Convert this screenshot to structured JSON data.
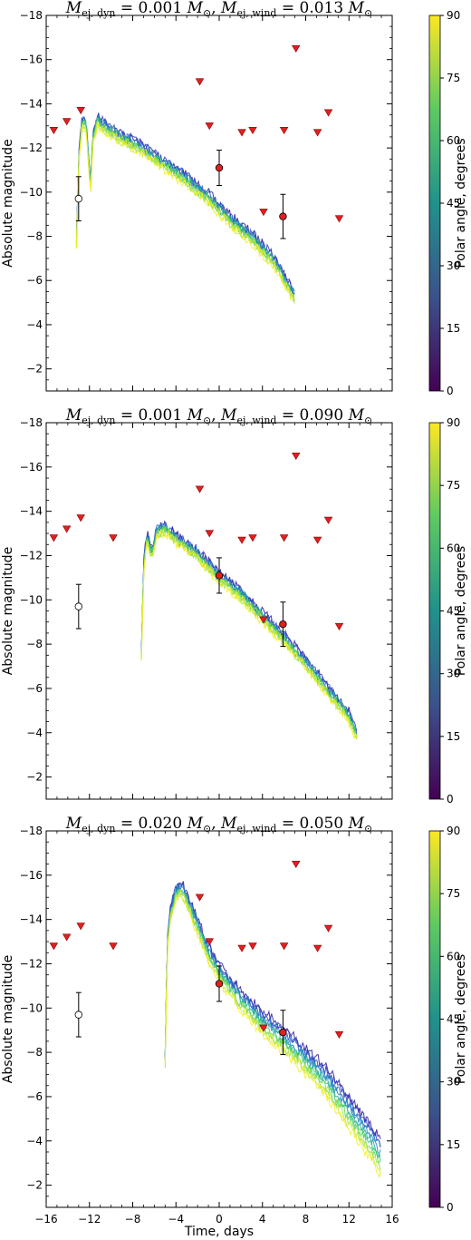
{
  "figure": {
    "xlabel": "Time, days",
    "ylabel": "Absolute magnitude",
    "colorbar_label": "Polar angle, degrees",
    "colorbar_ticks": [
      "0",
      "15",
      "30",
      "45",
      "60",
      "75",
      "90"
    ],
    "colormap": [
      "#440154",
      "#3b528b",
      "#21918c",
      "#5ec962",
      "#fde725"
    ],
    "model_colormap": [
      "#2c1394",
      "#2a4bd0",
      "#1e88c4",
      "#25b38f",
      "#57d95a",
      "#b6e83a",
      "#f4ef22"
    ],
    "marker_color_red": "#e02020",
    "marker_color_open": "#ffffff"
  },
  "chart_data": [
    {
      "type": "line",
      "title": "M_ej,dyn = 0.001 M⊙, M_ej,wind = 0.013 M⊙",
      "xlabel": "",
      "ylabel": "Absolute magnitude",
      "xlim": [
        -16,
        16
      ],
      "ylim": [
        -1,
        -18
      ],
      "xticks": [
        -16,
        -12,
        -8,
        -4,
        0,
        4,
        8,
        12,
        16
      ],
      "yticks": [
        -18,
        -16,
        -14,
        -12,
        -10,
        -8,
        -6,
        -4,
        -2
      ],
      "xticklabels_visible": false,
      "model": {
        "t_start": -13.2,
        "t_end": 7.0,
        "points": [
          [
            -13.2,
            -7.8
          ],
          [
            -13.0,
            -11.5
          ],
          [
            -12.7,
            -13.2
          ],
          [
            -12.3,
            -13.1
          ],
          [
            -11.9,
            -10.2
          ],
          [
            -11.7,
            -12.4
          ],
          [
            -11.3,
            -13.3
          ],
          [
            -10.5,
            -13.0
          ],
          [
            -9.0,
            -12.5
          ],
          [
            -7.0,
            -12.0
          ],
          [
            -5.0,
            -11.3
          ],
          [
            -3.0,
            -10.6
          ],
          [
            -1.0,
            -9.8
          ],
          [
            1.0,
            -8.8
          ],
          [
            3.0,
            -8.0
          ],
          [
            5.0,
            -7.0
          ],
          [
            7.0,
            -5.3
          ]
        ],
        "angle_range": [
          0,
          90
        ],
        "angle_spread_mag": 0.5,
        "early_spread_mag": 0.4
      },
      "upper_limits": [
        [
          -15.3,
          -12.8
        ],
        [
          -14.1,
          -13.2
        ],
        [
          -12.8,
          -13.7
        ],
        [
          -1.8,
          -15.0
        ],
        [
          -0.9,
          -13.0
        ],
        [
          2.1,
          -12.7
        ],
        [
          3.1,
          -12.8
        ],
        [
          4.1,
          -9.1
        ],
        [
          6.0,
          -12.8
        ],
        [
          7.1,
          -16.5
        ],
        [
          9.1,
          -12.7
        ],
        [
          10.1,
          -13.6
        ],
        [
          11.1,
          -8.8
        ]
      ],
      "detections": [
        {
          "x": 0.0,
          "y": -11.1,
          "yerr": 0.8
        },
        {
          "x": 5.9,
          "y": -8.9,
          "yerr": 1.0
        }
      ],
      "open_points": [
        {
          "x": -13.0,
          "y": -9.7,
          "yerr": 1.0
        }
      ]
    },
    {
      "type": "line",
      "title": "M_ej,dyn = 0.001 M⊙, M_ej,wind = 0.090 M⊙",
      "xlabel": "",
      "ylabel": "Absolute magnitude",
      "xlim": [
        -16,
        16
      ],
      "ylim": [
        -1,
        -18
      ],
      "xticks": [
        -16,
        -12,
        -8,
        -4,
        0,
        4,
        8,
        12,
        16
      ],
      "yticks": [
        -18,
        -16,
        -14,
        -12,
        -10,
        -8,
        -6,
        -4,
        -2
      ],
      "xticklabels_visible": false,
      "model": {
        "t_start": -7.2,
        "t_end": 12.8,
        "points": [
          [
            -7.2,
            -7.6
          ],
          [
            -7.0,
            -11.4
          ],
          [
            -6.7,
            -12.9
          ],
          [
            -6.2,
            -12.1
          ],
          [
            -5.8,
            -13.1
          ],
          [
            -5.0,
            -13.3
          ],
          [
            -4.0,
            -12.8
          ],
          [
            -2.0,
            -12.1
          ],
          [
            0.0,
            -11.1
          ],
          [
            2.0,
            -10.3
          ],
          [
            4.0,
            -9.3
          ],
          [
            6.0,
            -8.3
          ],
          [
            8.0,
            -7.2
          ],
          [
            10.0,
            -6.0
          ],
          [
            12.0,
            -4.8
          ],
          [
            12.8,
            -3.8
          ]
        ],
        "angle_range": [
          0,
          90
        ],
        "angle_spread_mag": 0.45,
        "early_spread_mag": 0.4
      },
      "upper_limits": [
        [
          -15.3,
          -12.8
        ],
        [
          -14.1,
          -13.2
        ],
        [
          -12.8,
          -13.7
        ],
        [
          -9.8,
          -12.8
        ],
        [
          -1.8,
          -15.0
        ],
        [
          -0.9,
          -13.0
        ],
        [
          2.1,
          -12.7
        ],
        [
          3.1,
          -12.8
        ],
        [
          4.1,
          -9.1
        ],
        [
          6.0,
          -12.8
        ],
        [
          7.1,
          -16.5
        ],
        [
          9.1,
          -12.7
        ],
        [
          10.1,
          -13.6
        ],
        [
          11.1,
          -8.8
        ]
      ],
      "detections": [
        {
          "x": 0.0,
          "y": -11.1,
          "yerr": 0.8
        },
        {
          "x": 5.9,
          "y": -8.9,
          "yerr": 1.0
        }
      ],
      "open_points": [
        {
          "x": -13.0,
          "y": -9.7,
          "yerr": 1.0
        }
      ]
    },
    {
      "type": "line",
      "title": "M_ej,dyn = 0.020 M⊙, M_ej,wind = 0.050 M⊙",
      "xlabel": "Time, days",
      "ylabel": "Absolute magnitude",
      "xlim": [
        -16,
        16
      ],
      "ylim": [
        -1,
        -18
      ],
      "xticks": [
        -16,
        -12,
        -8,
        -4,
        0,
        4,
        8,
        12,
        16
      ],
      "yticks": [
        -18,
        -16,
        -14,
        -12,
        -10,
        -8,
        -6,
        -4,
        -2
      ],
      "xticklabels_visible": true,
      "model": {
        "t_start": -5.0,
        "t_end": 15.0,
        "points": [
          [
            -5.0,
            -7.7
          ],
          [
            -4.8,
            -12.9
          ],
          [
            -4.5,
            -14.3
          ],
          [
            -4.0,
            -15.3
          ],
          [
            -3.5,
            -15.5
          ],
          [
            -3.0,
            -15.0
          ],
          [
            -2.0,
            -13.8
          ],
          [
            -1.0,
            -12.6
          ],
          [
            0.0,
            -11.7
          ],
          [
            2.0,
            -10.5
          ],
          [
            4.0,
            -9.5
          ],
          [
            6.0,
            -8.7
          ],
          [
            8.0,
            -7.8
          ],
          [
            10.0,
            -6.8
          ],
          [
            12.0,
            -5.5
          ],
          [
            14.0,
            -4.2
          ],
          [
            15.0,
            -3.4
          ]
        ],
        "angle_range": [
          0,
          90
        ],
        "angle_spread_mag": 1.6,
        "early_spread_mag": 0.5
      },
      "upper_limits": [
        [
          -15.3,
          -12.8
        ],
        [
          -14.1,
          -13.2
        ],
        [
          -12.8,
          -13.7
        ],
        [
          -9.8,
          -12.8
        ],
        [
          -1.8,
          -15.0
        ],
        [
          -0.9,
          -13.0
        ],
        [
          2.1,
          -12.7
        ],
        [
          3.1,
          -12.8
        ],
        [
          4.1,
          -9.1
        ],
        [
          6.0,
          -12.8
        ],
        [
          7.1,
          -16.5
        ],
        [
          9.1,
          -12.7
        ],
        [
          10.1,
          -13.6
        ],
        [
          11.1,
          -8.8
        ]
      ],
      "detections": [
        {
          "x": 0.0,
          "y": -11.1,
          "yerr": 0.8
        },
        {
          "x": 5.9,
          "y": -8.9,
          "yerr": 1.0
        }
      ],
      "open_points": [
        {
          "x": -13.0,
          "y": -9.7,
          "yerr": 1.0
        }
      ]
    }
  ]
}
